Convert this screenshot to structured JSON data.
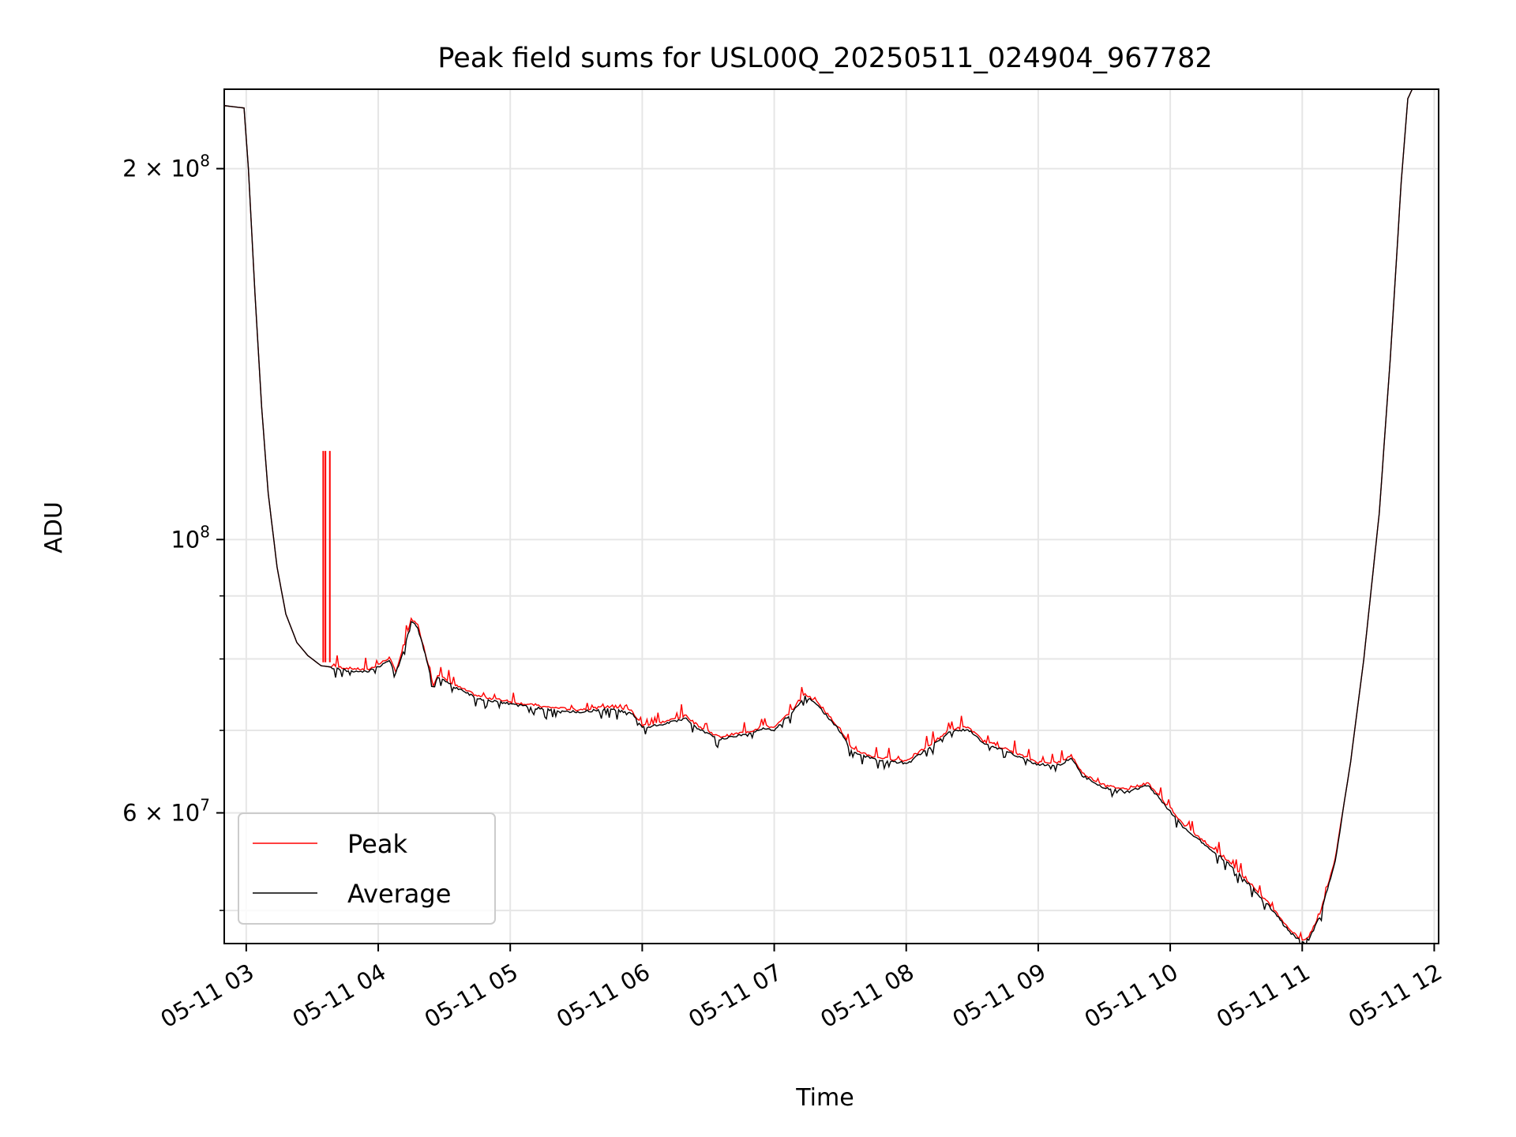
{
  "chart_data": {
    "type": "line",
    "title": "Peak field sums for USL00Q_20250511_024904_967782",
    "xlabel": "Time",
    "ylabel": "ADU",
    "x_unit": "hours",
    "x_date": "05-11",
    "xlim": [
      "05-11 02:50",
      "05-11 12:02"
    ],
    "ylim": [
      47000000,
      232000000
    ],
    "yscale": "log",
    "grid": true,
    "legend_position": "lower-left",
    "x_ticks": [
      {
        "time": "03:00",
        "label": "05-11 03"
      },
      {
        "time": "04:00",
        "label": "05-11 04"
      },
      {
        "time": "05:00",
        "label": "05-11 05"
      },
      {
        "time": "06:00",
        "label": "05-11 06"
      },
      {
        "time": "07:00",
        "label": "05-11 07"
      },
      {
        "time": "08:00",
        "label": "05-11 08"
      },
      {
        "time": "09:00",
        "label": "05-11 09"
      },
      {
        "time": "10:00",
        "label": "05-11 10"
      },
      {
        "time": "11:00",
        "label": "05-11 11"
      },
      {
        "time": "12:00",
        "label": "05-11 12"
      }
    ],
    "y_major_ticks": [
      {
        "value": 200000000,
        "mantissa": "2",
        "exp": "8"
      },
      {
        "value": 100000000,
        "mantissa": "",
        "exp": "8"
      },
      {
        "value": 60000000,
        "mantissa": "6",
        "exp": "7"
      }
    ],
    "y_minor_ticks": [
      50000000,
      70000000,
      80000000,
      90000000
    ],
    "series": [
      {
        "name": "Peak",
        "color": "#ff0000",
        "spikes": [
          {
            "time": "03:35",
            "base": 79500000,
            "top": 118000000
          },
          {
            "time": "03:36",
            "base": 79500000,
            "top": 118000000
          },
          {
            "time": "03:38",
            "base": 79500000,
            "top": 118000000
          }
        ]
      },
      {
        "name": "Average",
        "color": "#000000",
        "points": [
          [
            "02:50",
            225000000
          ],
          [
            "02:59",
            224000000
          ],
          [
            "03:01",
            200000000
          ],
          [
            "03:04",
            158000000
          ],
          [
            "03:07",
            128000000
          ],
          [
            "03:10",
            109000000
          ],
          [
            "03:14",
            95000000
          ],
          [
            "03:18",
            87000000
          ],
          [
            "03:23",
            82500000
          ],
          [
            "03:28",
            80500000
          ],
          [
            "03:34",
            79000000
          ],
          [
            "03:45",
            78500000
          ],
          [
            "03:55",
            78200000
          ],
          [
            "04:00",
            79000000
          ],
          [
            "04:05",
            80000000
          ],
          [
            "04:08",
            78000000
          ],
          [
            "04:12",
            82000000
          ],
          [
            "04:15",
            86000000
          ],
          [
            "04:18",
            85000000
          ],
          [
            "04:22",
            80000000
          ],
          [
            "04:25",
            76000000
          ],
          [
            "04:27",
            77500000
          ],
          [
            "04:35",
            76000000
          ],
          [
            "04:45",
            74500000
          ],
          [
            "05:00",
            73700000
          ],
          [
            "05:15",
            73000000
          ],
          [
            "05:30",
            72600000
          ],
          [
            "05:45",
            73000000
          ],
          [
            "05:55",
            72500000
          ],
          [
            "06:00",
            70500000
          ],
          [
            "06:10",
            71000000
          ],
          [
            "06:20",
            71800000
          ],
          [
            "06:25",
            70500000
          ],
          [
            "06:35",
            69000000
          ],
          [
            "06:50",
            69800000
          ],
          [
            "06:55",
            70500000
          ],
          [
            "07:00",
            70200000
          ],
          [
            "07:08",
            72500000
          ],
          [
            "07:14",
            74800000
          ],
          [
            "07:20",
            73500000
          ],
          [
            "07:30",
            70000000
          ],
          [
            "07:35",
            67500000
          ],
          [
            "07:45",
            66500000
          ],
          [
            "08:00",
            66000000
          ],
          [
            "08:10",
            67800000
          ],
          [
            "08:20",
            70000000
          ],
          [
            "08:28",
            70300000
          ],
          [
            "08:35",
            68500000
          ],
          [
            "08:45",
            67500000
          ],
          [
            "09:00",
            65800000
          ],
          [
            "09:10",
            65800000
          ],
          [
            "09:15",
            66700000
          ],
          [
            "09:20",
            64500000
          ],
          [
            "09:30",
            63000000
          ],
          [
            "09:40",
            62600000
          ],
          [
            "09:50",
            63300000
          ],
          [
            "09:55",
            61800000
          ],
          [
            "10:05",
            58800000
          ],
          [
            "10:15",
            56800000
          ],
          [
            "10:25",
            55000000
          ],
          [
            "10:35",
            52800000
          ],
          [
            "10:45",
            50500000
          ],
          [
            "10:55",
            48000000
          ],
          [
            "11:00",
            47200000
          ],
          [
            "11:03",
            47500000
          ],
          [
            "11:08",
            49500000
          ],
          [
            "11:15",
            55000000
          ],
          [
            "11:22",
            66000000
          ],
          [
            "11:28",
            80000000
          ],
          [
            "11:35",
            105000000
          ],
          [
            "11:40",
            140000000
          ],
          [
            "11:45",
            195000000
          ],
          [
            "11:48",
            228000000
          ],
          [
            "11:50",
            232000000
          ]
        ]
      }
    ]
  }
}
